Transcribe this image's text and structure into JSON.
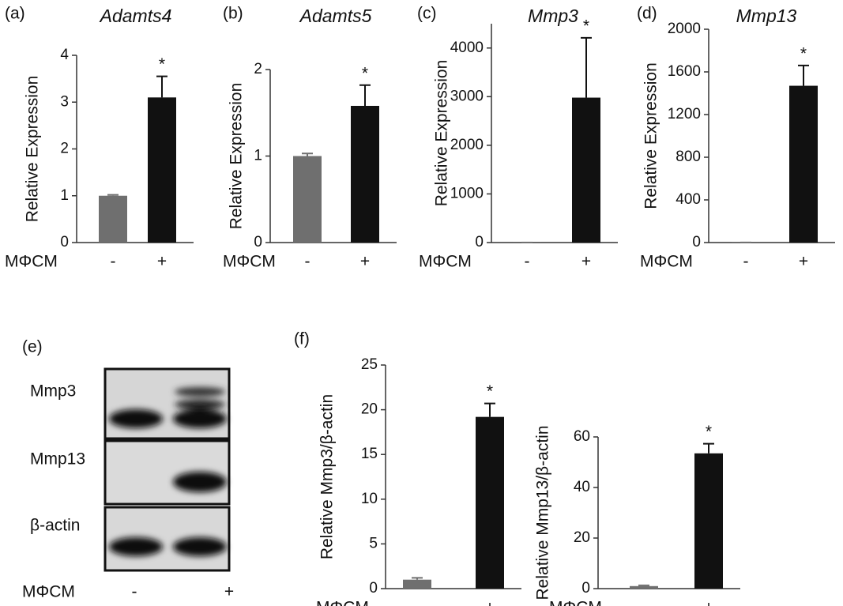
{
  "chart_data": [
    {
      "type": "bar",
      "panel": "(a)",
      "title": "Adamts4",
      "ylabel": "Relative Expression",
      "xlabel": "MΦCM",
      "categories": [
        "-",
        "+"
      ],
      "values": [
        1.0,
        3.1
      ],
      "errors": [
        0.02,
        0.45
      ],
      "colors": [
        "#6f6f6f",
        "#111111"
      ],
      "annotation": "*",
      "ylim": [
        0,
        4
      ],
      "yticks": [
        0,
        1,
        2,
        3,
        4
      ]
    },
    {
      "type": "bar",
      "panel": "(b)",
      "title": "Adamts5",
      "ylabel": "Relative Expression",
      "xlabel": "MΦCM",
      "categories": [
        "-",
        "+"
      ],
      "values": [
        1.0,
        1.58
      ],
      "errors": [
        0.03,
        0.24
      ],
      "colors": [
        "#6f6f6f",
        "#111111"
      ],
      "annotation": "*",
      "ylim": [
        0,
        2
      ],
      "yticks": [
        0,
        1,
        2
      ]
    },
    {
      "type": "bar",
      "panel": "(c)",
      "title": "Mmp3",
      "ylabel": "Relative Expression",
      "xlabel": "MΦCM",
      "categories": [
        "-",
        "+"
      ],
      "values": [
        1,
        2980
      ],
      "errors": [
        0,
        1230
      ],
      "colors": [
        "#6f6f6f",
        "#111111"
      ],
      "annotation": "*",
      "ylim": [
        0,
        4500
      ],
      "yticks": [
        0,
        1000,
        2000,
        3000,
        4000
      ]
    },
    {
      "type": "bar",
      "panel": "(d)",
      "title": "Mmp13",
      "ylabel": "Relative Expression",
      "xlabel": "MΦCM",
      "categories": [
        "-",
        "+"
      ],
      "values": [
        1,
        1470
      ],
      "errors": [
        0,
        190
      ],
      "colors": [
        "#6f6f6f",
        "#111111"
      ],
      "annotation": "*",
      "ylim": [
        0,
        2000
      ],
      "yticks": [
        0,
        400,
        800,
        1200,
        1600,
        2000
      ]
    },
    {
      "type": "bar",
      "panel": "(f)",
      "ylabel": "Relative Mmp3/β-actin",
      "xlabel": "MΦCM",
      "categories": [
        "-",
        "+"
      ],
      "values": [
        1.0,
        19.2
      ],
      "errors": [
        0.2,
        1.5
      ],
      "colors": [
        "#6f6f6f",
        "#111111"
      ],
      "annotation": "*",
      "ylim": [
        0,
        25
      ],
      "yticks": [
        0,
        5,
        10,
        15,
        20,
        25
      ]
    },
    {
      "type": "bar",
      "ylabel": "Relative Mmp13/β-actin",
      "xlabel": "MΦCM",
      "categories": [
        "-",
        "+"
      ],
      "values": [
        1.0,
        53.5
      ],
      "errors": [
        0.3,
        3.8
      ],
      "colors": [
        "#6f6f6f",
        "#111111"
      ],
      "annotation": "*",
      "ylim": [
        0,
        60
      ],
      "yticks": [
        0,
        20,
        40,
        60
      ]
    }
  ],
  "blot": {
    "panel": "(e)",
    "rows": [
      "Mmp3",
      "Mmp13",
      "β-actin"
    ],
    "condition": "MΦCM",
    "lanes": [
      "-",
      "+"
    ]
  }
}
